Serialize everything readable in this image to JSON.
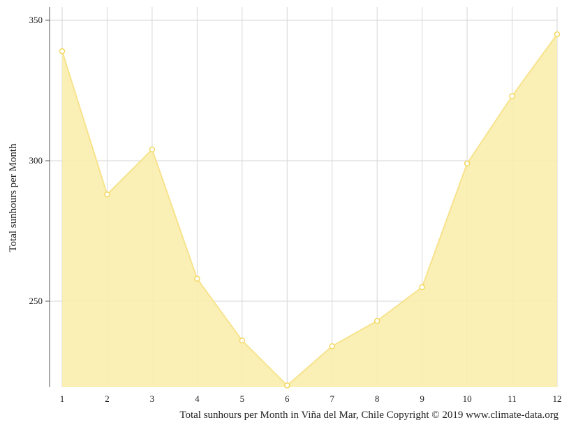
{
  "chart_data": {
    "type": "area",
    "x": [
      1,
      2,
      3,
      4,
      5,
      6,
      7,
      8,
      9,
      10,
      11,
      12
    ],
    "values": [
      339,
      288,
      304,
      258,
      236,
      220,
      234,
      243,
      255,
      299,
      323,
      345
    ],
    "ylabel": "Total sunhours per Month",
    "caption": "Total sunhours per Month in Viña del Mar, Chile Copyright © 2019 www.climate-data.org",
    "yticks": [
      250,
      300,
      350
    ],
    "ylim": [
      220,
      355
    ],
    "xlim": [
      1,
      12
    ],
    "grid": true,
    "colors": {
      "fill": "#f9eeae",
      "line": "#f7e38d",
      "marker_fill": "#ffffff",
      "marker_stroke": "#f3d860",
      "grid": "#d6d6d6",
      "axis": "#555555"
    }
  }
}
